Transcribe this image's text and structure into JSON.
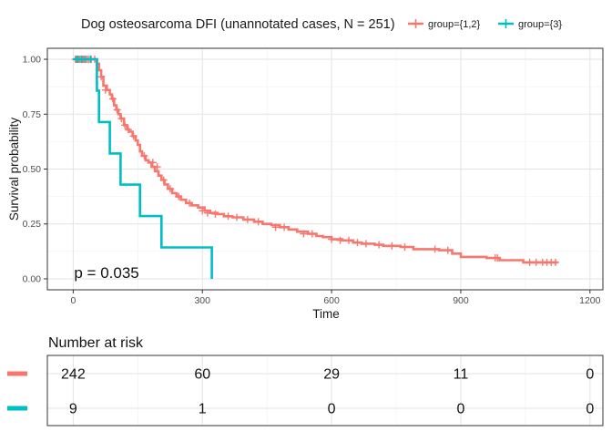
{
  "chart_data": {
    "type": "line",
    "subtype": "kaplan-meier",
    "title": "Dog osteosarcoma DFI (unannotated cases, N = 251)",
    "xlabel": "Time",
    "ylabel": "Survival probability",
    "xlim": [
      -60,
      1230
    ],
    "ylim": [
      -0.05,
      1.05
    ],
    "x_ticks": [
      0,
      300,
      600,
      900,
      1200
    ],
    "x_tick_labels": [
      "0",
      "300",
      "600",
      "900",
      "1200"
    ],
    "y_ticks": [
      0,
      0.25,
      0.5,
      0.75,
      1.0
    ],
    "y_tick_labels": [
      "0.00",
      "0.25",
      "0.50",
      "0.75",
      "1.00"
    ],
    "grid": true,
    "legend": {
      "position": "top",
      "entries": [
        "group={1,2}",
        "group={3}"
      ]
    },
    "annotation": "p = 0.035",
    "series": [
      {
        "name": "group={1,2}",
        "color": "#F8766D",
        "steps": [
          [
            0,
            1.0
          ],
          [
            55,
            0.98
          ],
          [
            60,
            0.95
          ],
          [
            65,
            0.92
          ],
          [
            70,
            0.88
          ],
          [
            78,
            0.86
          ],
          [
            85,
            0.84
          ],
          [
            90,
            0.82
          ],
          [
            95,
            0.79
          ],
          [
            100,
            0.77
          ],
          [
            105,
            0.75
          ],
          [
            110,
            0.73
          ],
          [
            118,
            0.7
          ],
          [
            125,
            0.68
          ],
          [
            130,
            0.67
          ],
          [
            138,
            0.65
          ],
          [
            145,
            0.63
          ],
          [
            150,
            0.61
          ],
          [
            155,
            0.58
          ],
          [
            160,
            0.56
          ],
          [
            168,
            0.54
          ],
          [
            175,
            0.53
          ],
          [
            182,
            0.51
          ],
          [
            190,
            0.49
          ],
          [
            198,
            0.47
          ],
          [
            205,
            0.45
          ],
          [
            212,
            0.43
          ],
          [
            220,
            0.41
          ],
          [
            230,
            0.39
          ],
          [
            240,
            0.375
          ],
          [
            250,
            0.36
          ],
          [
            262,
            0.345
          ],
          [
            275,
            0.335
          ],
          [
            290,
            0.325
          ],
          [
            305,
            0.31
          ],
          [
            318,
            0.3
          ],
          [
            335,
            0.295
          ],
          [
            350,
            0.285
          ],
          [
            370,
            0.28
          ],
          [
            395,
            0.27
          ],
          [
            420,
            0.26
          ],
          [
            440,
            0.25
          ],
          [
            460,
            0.245
          ],
          [
            480,
            0.235
          ],
          [
            500,
            0.225
          ],
          [
            520,
            0.215
          ],
          [
            545,
            0.205
          ],
          [
            565,
            0.195
          ],
          [
            580,
            0.19
          ],
          [
            600,
            0.18
          ],
          [
            625,
            0.175
          ],
          [
            650,
            0.165
          ],
          [
            670,
            0.16
          ],
          [
            700,
            0.155
          ],
          [
            720,
            0.15
          ],
          [
            760,
            0.145
          ],
          [
            790,
            0.135
          ],
          [
            850,
            0.13
          ],
          [
            880,
            0.115
          ],
          [
            900,
            0.1
          ],
          [
            960,
            0.095
          ],
          [
            990,
            0.085
          ],
          [
            1045,
            0.075
          ],
          [
            1125,
            0.075
          ]
        ],
        "censor_x": [
          5,
          10,
          15,
          18,
          22,
          25,
          28,
          32,
          36,
          42,
          50,
          65,
          75,
          92,
          102,
          112,
          120,
          128,
          140,
          165,
          185,
          195,
          210,
          225,
          245,
          270,
          300,
          312,
          330,
          360,
          380,
          405,
          430,
          470,
          490,
          535,
          555,
          600,
          620,
          640,
          660,
          680,
          710,
          740,
          770,
          840,
          870,
          980,
          985,
          1060,
          1075,
          1090,
          1100,
          1110,
          1120
        ],
        "censor_y": [
          1.0,
          1.0,
          1.0,
          1.0,
          1.0,
          1.0,
          1.0,
          1.0,
          1.0,
          1.0,
          1.0,
          0.92,
          0.86,
          0.82,
          0.77,
          0.73,
          0.7,
          0.68,
          0.65,
          0.56,
          0.53,
          0.51,
          0.45,
          0.41,
          0.375,
          0.345,
          0.31,
          0.3,
          0.295,
          0.285,
          0.28,
          0.27,
          0.26,
          0.235,
          0.235,
          0.205,
          0.205,
          0.18,
          0.175,
          0.175,
          0.165,
          0.16,
          0.155,
          0.15,
          0.145,
          0.135,
          0.13,
          0.095,
          0.095,
          0.075,
          0.075,
          0.075,
          0.075,
          0.075,
          0.075
        ]
      },
      {
        "name": "group={3}",
        "color": "#00BFC4",
        "steps": [
          [
            0,
            1.0
          ],
          [
            55,
            0.857
          ],
          [
            60,
            0.714
          ],
          [
            85,
            0.571
          ],
          [
            110,
            0.429
          ],
          [
            155,
            0.286
          ],
          [
            205,
            0.143
          ],
          [
            322,
            0.0
          ]
        ],
        "censor_x": [
          8,
          12,
          20,
          28,
          40
        ],
        "censor_y": [
          1.0,
          1.0,
          1.0,
          1.0,
          1.0
        ]
      }
    ],
    "risk_table": {
      "title": "Number at risk",
      "times": [
        0,
        300,
        600,
        900,
        1200
      ],
      "rows": [
        {
          "name": "group={1,2}",
          "color": "#F8766D",
          "values": [
            "242",
            "60",
            "29",
            "11",
            "0"
          ]
        },
        {
          "name": "group={3}",
          "color": "#00BFC4",
          "values": [
            "9",
            "1",
            "0",
            "0",
            "0"
          ]
        }
      ]
    }
  }
}
